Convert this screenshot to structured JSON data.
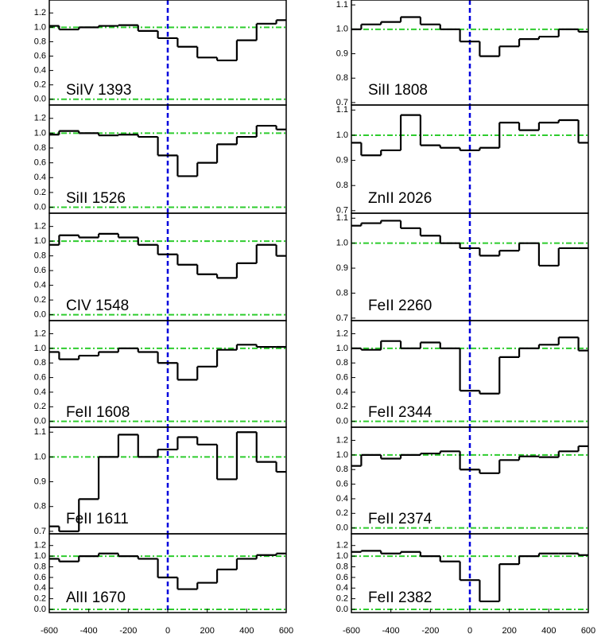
{
  "chart_data": [
    {
      "type": "step",
      "label": "SiIV 1393",
      "x": [
        -600,
        -500,
        -400,
        -300,
        -200,
        -100,
        0,
        100,
        200,
        300,
        400,
        500,
        600
      ],
      "values": [
        1.02,
        0.97,
        1.0,
        1.02,
        1.03,
        0.95,
        0.85,
        0.73,
        0.58,
        0.54,
        0.82,
        1.05,
        1.1
      ],
      "ylim": [
        -0.08,
        1.38
      ],
      "xlim": [
        -600,
        600
      ],
      "yticks": [
        {
          "value": 0,
          "label": "0.0"
        },
        0.2,
        0.4,
        0.6,
        0.8,
        {
          "value": 1,
          "label": "1.0"
        },
        1.2
      ],
      "hlines": [
        1,
        0
      ],
      "vline": 0
    },
    {
      "type": "step",
      "label": "SiII 1526",
      "x": [
        -600,
        -500,
        -400,
        -300,
        -200,
        -100,
        0,
        100,
        200,
        300,
        400,
        500,
        600
      ],
      "values": [
        0.98,
        1.03,
        1.0,
        0.97,
        0.98,
        0.95,
        0.7,
        0.42,
        0.6,
        0.85,
        0.95,
        1.1,
        1.05
      ],
      "ylim": [
        -0.08,
        1.38
      ],
      "xlim": [
        -600,
        600
      ],
      "yticks": [
        {
          "value": 0,
          "label": "0.0"
        },
        0.2,
        0.4,
        0.6,
        0.8,
        {
          "value": 1,
          "label": "1.0"
        },
        1.2
      ],
      "hlines": [
        1,
        0
      ],
      "vline": 0
    },
    {
      "type": "step",
      "label": "CIV 1548",
      "x": [
        -600,
        -500,
        -400,
        -300,
        -200,
        -100,
        0,
        100,
        200,
        300,
        400,
        500,
        600
      ],
      "values": [
        0.95,
        1.08,
        1.05,
        1.1,
        1.05,
        0.95,
        0.82,
        0.68,
        0.55,
        0.5,
        0.7,
        0.95,
        0.8
      ],
      "ylim": [
        -0.08,
        1.38
      ],
      "xlim": [
        -600,
        600
      ],
      "yticks": [
        {
          "value": 0,
          "label": "0.0"
        },
        0.2,
        0.4,
        0.6,
        0.8,
        {
          "value": 1,
          "label": "1.0"
        },
        1.2
      ],
      "hlines": [
        1,
        0
      ],
      "vline": 0
    },
    {
      "type": "step",
      "label": "FeII 1608",
      "x": [
        -600,
        -500,
        -400,
        -300,
        -200,
        -100,
        0,
        100,
        200,
        300,
        400,
        500,
        600
      ],
      "values": [
        0.95,
        0.85,
        0.9,
        0.95,
        1.0,
        0.95,
        0.8,
        0.57,
        0.75,
        0.98,
        1.05,
        1.02,
        1.02
      ],
      "ylim": [
        -0.08,
        1.38
      ],
      "xlim": [
        -600,
        600
      ],
      "yticks": [
        {
          "value": 0,
          "label": "0.0"
        },
        0.2,
        0.4,
        0.6,
        0.8,
        {
          "value": 1,
          "label": "1.0"
        },
        1.2
      ],
      "hlines": [
        1,
        0
      ],
      "vline": 0
    },
    {
      "type": "step",
      "label": "FeII 1611",
      "x": [
        -600,
        -500,
        -400,
        -300,
        -200,
        -100,
        0,
        100,
        200,
        300,
        400,
        500,
        600
      ],
      "values": [
        0.72,
        0.7,
        0.83,
        1.0,
        1.09,
        1.0,
        1.03,
        1.08,
        1.05,
        0.91,
        1.1,
        0.98,
        0.94
      ],
      "ylim": [
        0.69,
        1.12
      ],
      "xlim": [
        -600,
        600
      ],
      "yticks": [
        0.7,
        0.8,
        0.9,
        {
          "value": 1,
          "label": "1.0"
        },
        1.1
      ],
      "hlines": [
        1
      ],
      "vline": 0
    },
    {
      "type": "step",
      "label": "AlII 1670",
      "x": [
        -600,
        -500,
        -400,
        -300,
        -200,
        -100,
        0,
        100,
        200,
        300,
        400,
        500,
        600
      ],
      "values": [
        0.95,
        0.9,
        1.0,
        1.05,
        1.0,
        0.95,
        0.6,
        0.38,
        0.5,
        0.75,
        0.95,
        1.02,
        1.05
      ],
      "ylim": [
        -0.06,
        1.42
      ],
      "xlim": [
        -600,
        600
      ],
      "yticks": [
        {
          "value": 0,
          "label": "0.0"
        },
        0.2,
        0.4,
        0.6,
        0.8,
        {
          "value": 1,
          "label": "1.0"
        },
        1.2
      ],
      "xticks": [
        -600,
        -400,
        -200,
        0,
        200,
        400,
        600
      ],
      "hlines": [
        1,
        0
      ],
      "vline": 0
    },
    {
      "type": "step",
      "label": "SiII 1808",
      "x": [
        -600,
        -500,
        -400,
        -300,
        -200,
        -100,
        0,
        100,
        200,
        300,
        400,
        500,
        600
      ],
      "values": [
        1.0,
        1.02,
        1.03,
        1.05,
        1.02,
        1.0,
        0.95,
        0.89,
        0.93,
        0.96,
        0.97,
        1.0,
        0.99
      ],
      "ylim": [
        0.69,
        1.12
      ],
      "xlim": [
        -600,
        600
      ],
      "yticks": [
        0.7,
        0.8,
        0.9,
        {
          "value": 1,
          "label": "1.0"
        },
        1.1
      ],
      "hlines": [
        1
      ],
      "vline": 0
    },
    {
      "type": "step",
      "label": "ZnII 2026",
      "x": [
        -600,
        -500,
        -400,
        -300,
        -200,
        -100,
        0,
        100,
        200,
        300,
        400,
        500,
        600
      ],
      "values": [
        0.97,
        0.92,
        0.94,
        1.08,
        0.96,
        0.95,
        0.94,
        0.95,
        1.05,
        1.02,
        1.05,
        1.06,
        0.97
      ],
      "ylim": [
        0.69,
        1.12
      ],
      "xlim": [
        -600,
        600
      ],
      "yticks": [
        0.7,
        0.8,
        0.9,
        {
          "value": 1,
          "label": "1.0"
        },
        1.1
      ],
      "hlines": [
        1
      ],
      "vline": 0
    },
    {
      "type": "step",
      "label": "FeII 2260",
      "x": [
        -600,
        -500,
        -400,
        -300,
        -200,
        -100,
        0,
        100,
        200,
        300,
        400,
        500,
        600
      ],
      "values": [
        1.07,
        1.08,
        1.09,
        1.06,
        1.03,
        1.0,
        0.98,
        0.95,
        0.97,
        1.0,
        0.91,
        0.98,
        0.98
      ],
      "ylim": [
        0.69,
        1.12
      ],
      "xlim": [
        -600,
        600
      ],
      "yticks": [
        0.7,
        0.8,
        0.9,
        {
          "value": 1,
          "label": "1.0"
        },
        1.1
      ],
      "hlines": [
        1
      ],
      "vline": 0
    },
    {
      "type": "step",
      "label": "FeII 2344",
      "x": [
        -600,
        -500,
        -400,
        -300,
        -200,
        -100,
        0,
        100,
        200,
        300,
        400,
        500,
        600
      ],
      "values": [
        1.0,
        0.98,
        1.1,
        1.0,
        1.08,
        1.0,
        0.42,
        0.38,
        0.88,
        1.0,
        1.05,
        1.15,
        0.97
      ],
      "ylim": [
        -0.08,
        1.38
      ],
      "xlim": [
        -600,
        600
      ],
      "yticks": [
        {
          "value": 0,
          "label": "0.0"
        },
        0.2,
        0.4,
        0.6,
        0.8,
        {
          "value": 1,
          "label": "1.0"
        },
        1.2
      ],
      "hlines": [
        1,
        0
      ],
      "vline": 0
    },
    {
      "type": "step",
      "label": "FeII 2374",
      "x": [
        -600,
        -500,
        -400,
        -300,
        -200,
        -100,
        0,
        100,
        200,
        300,
        400,
        500,
        600
      ],
      "values": [
        0.85,
        1.0,
        0.95,
        1.0,
        1.02,
        1.05,
        0.8,
        0.75,
        0.93,
        0.98,
        0.97,
        1.05,
        1.12
      ],
      "ylim": [
        -0.08,
        1.38
      ],
      "xlim": [
        -600,
        600
      ],
      "yticks": [
        {
          "value": 0,
          "label": "0.0"
        },
        0.2,
        0.4,
        0.6,
        0.8,
        {
          "value": 1,
          "label": "1.0"
        },
        1.2
      ],
      "hlines": [
        1,
        0
      ],
      "vline": 0
    },
    {
      "type": "step",
      "label": "FeII 2382",
      "x": [
        -600,
        -500,
        -400,
        -300,
        -200,
        -100,
        0,
        100,
        200,
        300,
        400,
        500,
        600
      ],
      "values": [
        1.08,
        1.1,
        1.05,
        1.08,
        1.0,
        0.9,
        0.55,
        0.15,
        0.85,
        1.0,
        1.05,
        1.05,
        1.02
      ],
      "ylim": [
        -0.06,
        1.42
      ],
      "xlim": [
        -600,
        600
      ],
      "yticks": [
        {
          "value": 0,
          "label": "0.0"
        },
        0.2,
        0.4,
        0.6,
        0.8,
        {
          "value": 1,
          "label": "1.0"
        },
        1.2
      ],
      "xticks": [
        -600,
        -400,
        -200,
        0,
        200,
        400,
        600
      ],
      "hlines": [
        1,
        0
      ],
      "vline": 0
    }
  ]
}
